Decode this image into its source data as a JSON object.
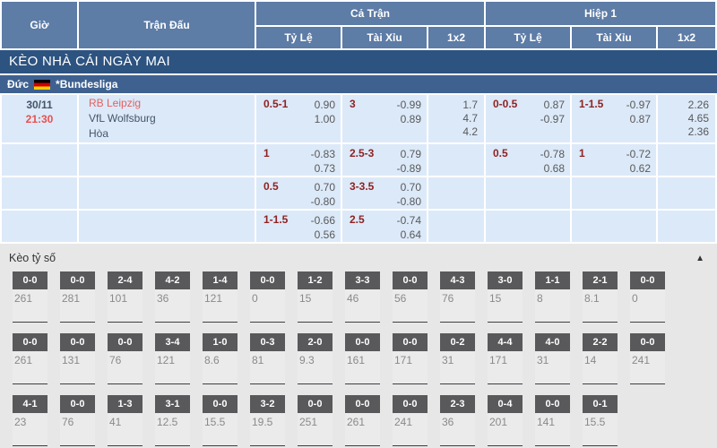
{
  "colors": {
    "header_bg": "#5d7ca6",
    "banner_bg": "#2d5380",
    "league_bg": "#3e6190",
    "row_bg": "#dce9f8",
    "line_text": "#8f2222",
    "odds_text": "#58595b",
    "home_team": "#e4605f",
    "time_text": "#e8504f",
    "date_text": "#44546a",
    "score_box_bg": "#59595b",
    "section_bg": "#e7e7e7"
  },
  "header": {
    "time": "Giờ",
    "match": "Trận Đấu",
    "full_match": "Cả Trận",
    "first_half": "Hiệp 1",
    "handicap": "Tỷ Lệ",
    "over_under": "Tài Xỉu",
    "one_x_two": "1x2"
  },
  "banner": {
    "title": "KÈO NHÀ CÁI NGÀY MAI"
  },
  "league": {
    "country": "Đức",
    "name": "*Bundesliga",
    "flag": "germany-flag"
  },
  "match": {
    "date": "30/11",
    "time": "21:30",
    "home": "RB Leipzig",
    "away": "VfL Wolfsburg",
    "draw": "Hòa"
  },
  "odds_rows": [
    {
      "ft_hdp": {
        "line": "0.5-1",
        "o1": "0.90",
        "o2": "1.00"
      },
      "ft_ou": {
        "line": "3",
        "o1": "-0.99",
        "o2": "0.89"
      },
      "ft_1x2": [
        "1.7",
        "4.7",
        "4.2"
      ],
      "h1_hdp": {
        "line": "0-0.5",
        "o1": "0.87",
        "o2": "-0.97"
      },
      "h1_ou": {
        "line": "1-1.5",
        "o1": "-0.97",
        "o2": "0.87"
      },
      "h1_1x2": [
        "2.26",
        "4.65",
        "2.36"
      ]
    },
    {
      "ft_hdp": {
        "line": "1",
        "o1": "-0.83",
        "o2": "0.73"
      },
      "ft_ou": {
        "line": "2.5-3",
        "o1": "0.79",
        "o2": "-0.89"
      },
      "ft_1x2": [],
      "h1_hdp": {
        "line": "0.5",
        "o1": "-0.78",
        "o2": "0.68"
      },
      "h1_ou": {
        "line": "1",
        "o1": "-0.72",
        "o2": "0.62"
      },
      "h1_1x2": []
    },
    {
      "ft_hdp": {
        "line": "0.5",
        "o1": "0.70",
        "o2": "-0.80"
      },
      "ft_ou": {
        "line": "3-3.5",
        "o1": "0.70",
        "o2": "-0.80"
      },
      "ft_1x2": [],
      "h1_hdp": null,
      "h1_ou": null,
      "h1_1x2": []
    },
    {
      "ft_hdp": {
        "line": "1-1.5",
        "o1": "-0.66",
        "o2": "0.56"
      },
      "ft_ou": {
        "line": "2.5",
        "o1": "-0.74",
        "o2": "0.64"
      },
      "ft_1x2": [],
      "h1_hdp": null,
      "h1_ou": null,
      "h1_1x2": []
    }
  ],
  "score_section": {
    "title": "Kèo tỷ số",
    "collapse_icon": "▲",
    "rows": [
      [
        {
          "score": "0-0",
          "value": "261"
        },
        {
          "score": "0-0",
          "value": "281"
        },
        {
          "score": "2-4",
          "value": "101"
        },
        {
          "score": "4-2",
          "value": "36"
        },
        {
          "score": "1-4",
          "value": "121"
        },
        {
          "score": "0-0",
          "value": "0"
        },
        {
          "score": "1-2",
          "value": "15"
        },
        {
          "score": "3-3",
          "value": "46"
        },
        {
          "score": "0-0",
          "value": "56"
        },
        {
          "score": "4-3",
          "value": "76"
        },
        {
          "score": "3-0",
          "value": "15"
        },
        {
          "score": "1-1",
          "value": "8"
        },
        {
          "score": "2-1",
          "value": "8.1"
        },
        {
          "score": "0-0",
          "value": "0"
        }
      ],
      [
        {
          "score": "0-0",
          "value": "261"
        },
        {
          "score": "0-0",
          "value": "131"
        },
        {
          "score": "0-0",
          "value": "76"
        },
        {
          "score": "3-4",
          "value": "121"
        },
        {
          "score": "1-0",
          "value": "8.6"
        },
        {
          "score": "0-3",
          "value": "81"
        },
        {
          "score": "2-0",
          "value": "9.3"
        },
        {
          "score": "0-0",
          "value": "161"
        },
        {
          "score": "0-0",
          "value": "171"
        },
        {
          "score": "0-2",
          "value": "31"
        },
        {
          "score": "4-4",
          "value": "171"
        },
        {
          "score": "4-0",
          "value": "31"
        },
        {
          "score": "2-2",
          "value": "14"
        },
        {
          "score": "0-0",
          "value": "241"
        }
      ],
      [
        {
          "score": "4-1",
          "value": "23"
        },
        {
          "score": "0-0",
          "value": "76"
        },
        {
          "score": "1-3",
          "value": "41"
        },
        {
          "score": "3-1",
          "value": "12.5"
        },
        {
          "score": "0-0",
          "value": "15.5"
        },
        {
          "score": "3-2",
          "value": "19.5"
        },
        {
          "score": "0-0",
          "value": "251"
        },
        {
          "score": "0-0",
          "value": "261"
        },
        {
          "score": "0-0",
          "value": "241"
        },
        {
          "score": "2-3",
          "value": "36"
        },
        {
          "score": "0-4",
          "value": "201"
        },
        {
          "score": "0-0",
          "value": "141"
        },
        {
          "score": "0-1",
          "value": "15.5"
        }
      ]
    ]
  }
}
